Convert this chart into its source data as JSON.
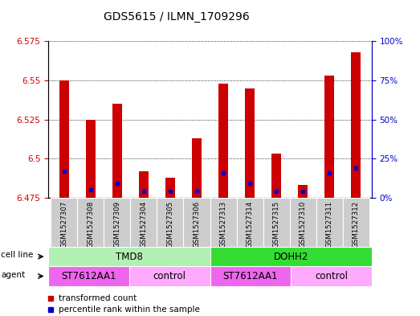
{
  "title": "GDS5615 / ILMN_1709296",
  "samples": [
    "GSM1527307",
    "GSM1527308",
    "GSM1527309",
    "GSM1527304",
    "GSM1527305",
    "GSM1527306",
    "GSM1527313",
    "GSM1527314",
    "GSM1527315",
    "GSM1527310",
    "GSM1527311",
    "GSM1527312"
  ],
  "red_values": [
    6.55,
    6.525,
    6.535,
    6.492,
    6.488,
    6.513,
    6.548,
    6.545,
    6.503,
    6.483,
    6.553,
    6.568
  ],
  "blue_values": [
    6.492,
    6.48,
    6.484,
    6.479,
    6.479,
    6.479,
    6.491,
    6.484,
    6.479,
    6.479,
    6.491,
    6.494
  ],
  "ylim_left": [
    6.475,
    6.575
  ],
  "yticks_left": [
    6.475,
    6.5,
    6.525,
    6.55,
    6.575
  ],
  "yticks_right": [
    0,
    25,
    50,
    75,
    100
  ],
  "ytick_labels_left": [
    "6.475",
    "6.5",
    "6.525",
    "6.55",
    "6.575"
  ],
  "ytick_labels_right": [
    "0%",
    "25%",
    "50%",
    "75%",
    "100%"
  ],
  "cell_line_groups": [
    {
      "label": "TMD8",
      "start": 0,
      "end": 6,
      "color": "#b3f0b3"
    },
    {
      "label": "DOHH2",
      "start": 6,
      "end": 12,
      "color": "#33dd33"
    }
  ],
  "agent_groups": [
    {
      "label": "ST7612AA1",
      "start": 0,
      "end": 3,
      "color": "#ee66ee"
    },
    {
      "label": "control",
      "start": 3,
      "end": 6,
      "color": "#ffaaff"
    },
    {
      "label": "ST7612AA1",
      "start": 6,
      "end": 9,
      "color": "#ee66ee"
    },
    {
      "label": "control",
      "start": 9,
      "end": 12,
      "color": "#ffaaff"
    }
  ],
  "bar_color": "#cc0000",
  "dot_color": "#0000cc",
  "base_value": 6.475,
  "label_cell_line": "cell line",
  "label_agent": "agent",
  "legend_red": "transformed count",
  "legend_blue": "percentile rank within the sample",
  "left_axis_color": "#cc0000",
  "right_axis_color": "#0000cc",
  "tick_bg_color": "#cccccc"
}
